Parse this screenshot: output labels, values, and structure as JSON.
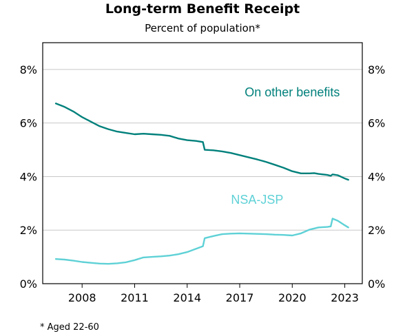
{
  "chart_data": {
    "type": "line",
    "title": "Long-term Benefit Receipt",
    "subtitle": "Percent of population*",
    "footnote": "* Aged 22-60",
    "xlabel": "",
    "ylabel": "",
    "xlim": [
      2005.75,
      2024.0
    ],
    "ylim": [
      0,
      9
    ],
    "yticks": [
      0,
      2,
      4,
      6,
      8
    ],
    "ytick_labels": [
      "0%",
      "2%",
      "4%",
      "6%",
      "8%"
    ],
    "xticks": [
      2008,
      2011,
      2014,
      2017,
      2020,
      2023
    ],
    "xtick_labels": [
      "2008",
      "2011",
      "2014",
      "2017",
      "2020",
      "2023"
    ],
    "grid": true,
    "series": [
      {
        "name": "On other benefits",
        "color": "#00807b",
        "x": [
          2006.5,
          2007.0,
          2007.5,
          2008.0,
          2008.5,
          2009.0,
          2009.5,
          2010.0,
          2010.5,
          2011.0,
          2011.5,
          2012.0,
          2012.5,
          2013.0,
          2013.5,
          2014.0,
          2014.5,
          2014.9,
          2015.0,
          2015.5,
          2016.0,
          2016.5,
          2017.0,
          2017.5,
          2018.0,
          2018.5,
          2019.0,
          2019.5,
          2020.0,
          2020.5,
          2021.0,
          2021.25,
          2021.5,
          2022.0,
          2022.2,
          2022.3,
          2022.6,
          2023.0,
          2023.2
        ],
        "y": [
          6.73,
          6.6,
          6.43,
          6.22,
          6.05,
          5.88,
          5.77,
          5.68,
          5.63,
          5.58,
          5.6,
          5.58,
          5.56,
          5.52,
          5.42,
          5.36,
          5.33,
          5.29,
          5.0,
          4.98,
          4.94,
          4.88,
          4.8,
          4.72,
          4.64,
          4.55,
          4.44,
          4.33,
          4.2,
          4.12,
          4.12,
          4.13,
          4.1,
          4.06,
          4.03,
          4.08,
          4.05,
          3.93,
          3.88
        ]
      },
      {
        "name": "NSA-JSP",
        "color": "#5ed1d6",
        "x": [
          2006.5,
          2007.0,
          2007.5,
          2008.0,
          2008.5,
          2009.0,
          2009.5,
          2010.0,
          2010.5,
          2011.0,
          2011.5,
          2012.0,
          2012.5,
          2013.0,
          2013.5,
          2014.0,
          2014.5,
          2014.9,
          2015.0,
          2015.5,
          2016.0,
          2016.5,
          2017.0,
          2017.5,
          2018.0,
          2018.5,
          2019.0,
          2019.5,
          2020.0,
          2020.5,
          2021.0,
          2021.5,
          2022.0,
          2022.2,
          2022.3,
          2022.6,
          2023.0,
          2023.2
        ],
        "y": [
          0.92,
          0.9,
          0.86,
          0.81,
          0.78,
          0.75,
          0.74,
          0.76,
          0.8,
          0.88,
          0.98,
          1.0,
          1.02,
          1.05,
          1.1,
          1.18,
          1.3,
          1.4,
          1.7,
          1.78,
          1.85,
          1.87,
          1.88,
          1.87,
          1.86,
          1.85,
          1.83,
          1.82,
          1.8,
          1.88,
          2.02,
          2.1,
          2.12,
          2.14,
          2.43,
          2.35,
          2.18,
          2.1
        ]
      }
    ],
    "series_labels": [
      {
        "text": "On other benefits",
        "color": "#00807b",
        "at": [
          2020.0,
          7.0
        ]
      },
      {
        "text": "NSA-JSP",
        "color": "#5ed1d6",
        "at": [
          2018.0,
          2.98
        ]
      }
    ]
  }
}
